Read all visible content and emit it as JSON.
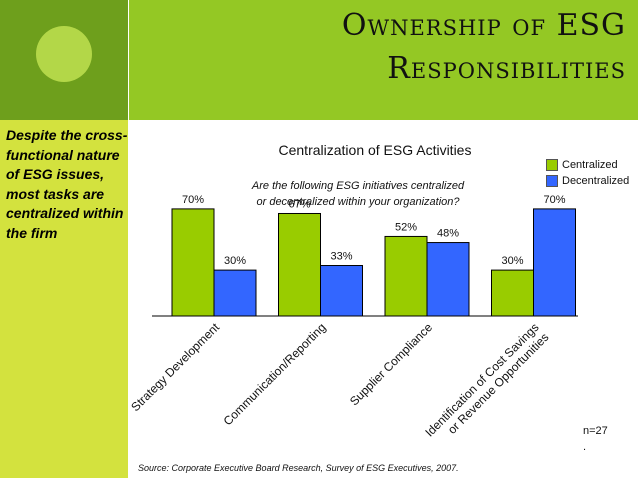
{
  "slide": {
    "title_line1": "Ownership of ESG",
    "title_line2": "Responsibilities",
    "sidebar_note": "Despite the cross-functional nature of ESG issues, most tasks are centralized within the firm",
    "n_label": "n=27",
    "n_dot": ".",
    "source": "Source: Corporate Executive Board Research, Survey of ESG Executives, 2007."
  },
  "colors": {
    "header": "#94c824",
    "header_dark": "#6e9f1c",
    "left_strip": "#d3e23e",
    "centralized": "#99cc00",
    "decentralized": "#3366ff"
  },
  "chart_data": {
    "type": "bar",
    "title": "Centralization of ESG Activities",
    "subtitle_line1": "Are the following ESG initiatives centralized",
    "subtitle_line2": "or decentralized within your organization?",
    "categories": [
      "Strategy Development",
      "Communication/Reporting",
      "Supplier Compliance",
      "Identification of Cost Savings or Revenue Opportunities"
    ],
    "series": [
      {
        "name": "Centralized",
        "values": [
          70,
          67,
          52,
          30
        ],
        "labels": [
          "70%",
          "67%",
          "52%",
          "30%"
        ]
      },
      {
        "name": "Decentralized",
        "values": [
          30,
          33,
          48,
          70
        ],
        "labels": [
          "30%",
          "33%",
          "48%",
          "70%"
        ]
      }
    ],
    "ylim": [
      0,
      100
    ],
    "grid": false,
    "legend": "top-right"
  }
}
